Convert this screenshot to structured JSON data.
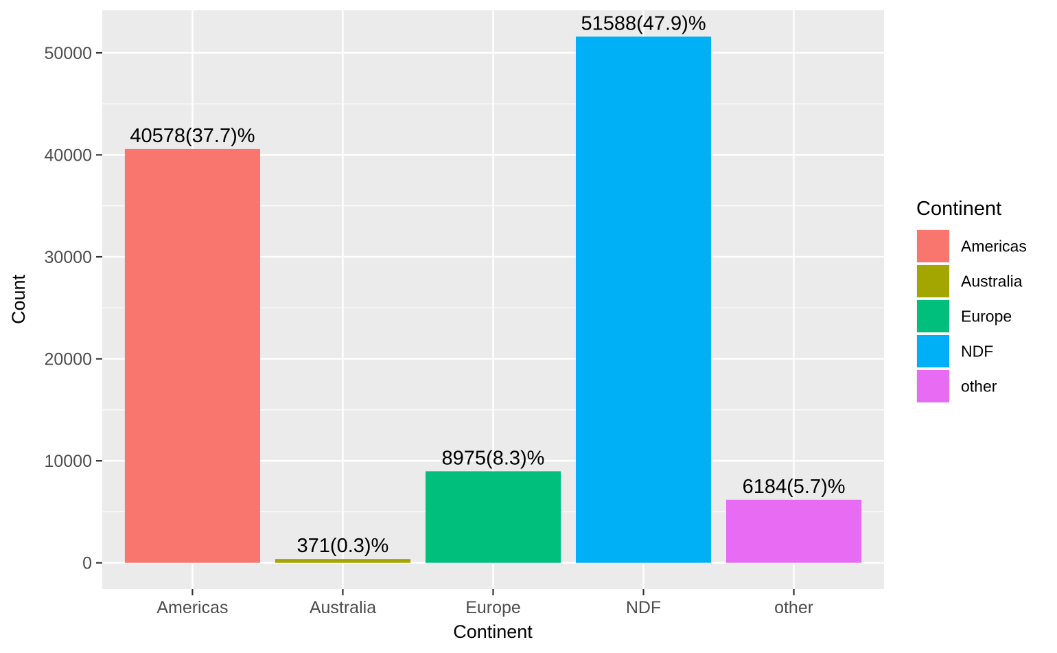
{
  "chart_data": {
    "type": "bar",
    "categories": [
      "Americas",
      "Australia",
      "Europe",
      "NDF",
      "other"
    ],
    "values": [
      40578,
      371,
      8975,
      51588,
      6184
    ],
    "data_labels": [
      "40578(37.7)%",
      "371(0.3)%",
      "8975(8.3)%",
      "51588(47.9)%",
      "6184(5.7)%"
    ],
    "colors": [
      "#F8766D",
      "#A3A500",
      "#00BF7D",
      "#00B0F6",
      "#E76BF3"
    ],
    "xlabel": "Continent",
    "ylabel": "Count",
    "ylim": [
      -2580,
      54170
    ],
    "yticks": [
      0,
      10000,
      20000,
      30000,
      40000,
      50000
    ],
    "ytick_labels": [
      "0",
      "10000",
      "20000",
      "30000",
      "40000",
      "50000"
    ],
    "grid": true,
    "panel_background": "#EBEBEB",
    "grid_color": "#FFFFFF",
    "legend": {
      "title": "Continent",
      "position": "right",
      "items": [
        "Americas",
        "Australia",
        "Europe",
        "NDF",
        "other"
      ]
    }
  }
}
